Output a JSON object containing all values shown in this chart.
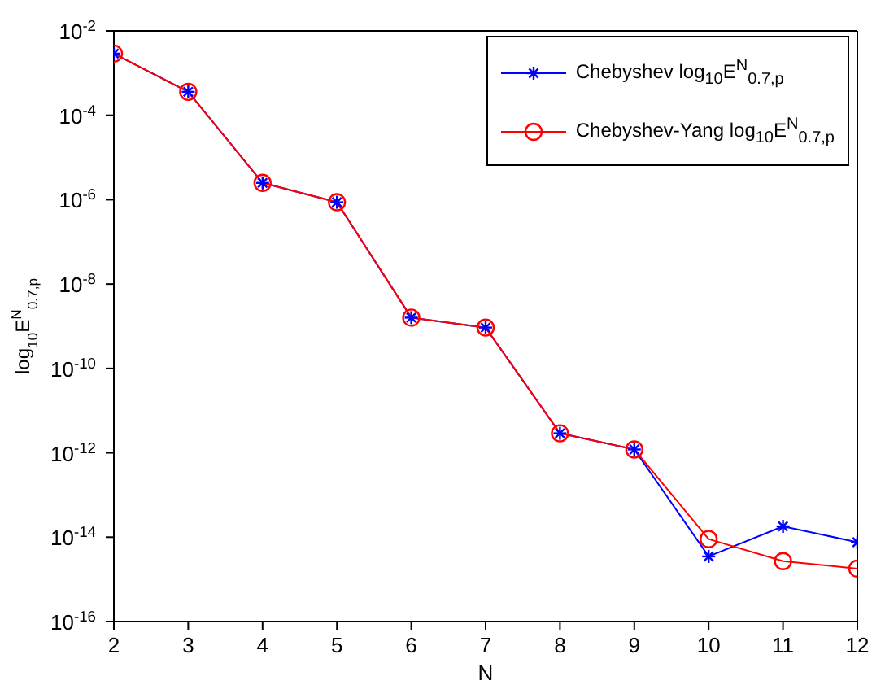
{
  "chart_data": {
    "type": "line",
    "xlabel": "N",
    "ylabel": "log$_{10}$E$^{N}$$_{0.7,p}$",
    "x": [
      2,
      3,
      4,
      5,
      6,
      7,
      8,
      9,
      10,
      11,
      12
    ],
    "series": [
      {
        "name": "Chebyshev log$_{10}$E$^{N}$$_{0.7,p}$",
        "color": "#0000ff",
        "marker": "cross",
        "values": [
          0.0029,
          0.00036,
          2.5e-06,
          8.7e-07,
          1.6e-09,
          9.3e-10,
          2.9e-12,
          1.2e-12,
          3.5e-15,
          1.8e-14,
          7.6e-15
        ]
      },
      {
        "name": "Chebyshev-Yang log$_{10}$E$^{N}$$_{0.7,p}$",
        "color": "#ff0000",
        "marker": "circle",
        "values": [
          0.0029,
          0.00036,
          2.5e-06,
          8.7e-07,
          1.6e-09,
          9.3e-10,
          2.9e-12,
          1.2e-12,
          9e-15,
          2.7e-15,
          1.8e-15
        ]
      }
    ],
    "log": "y",
    "xlim": [
      2,
      12
    ],
    "xticks": [
      2,
      3,
      4,
      5,
      6,
      7,
      8,
      9,
      10,
      11,
      12
    ],
    "ylim": [
      1e-16,
      0.01
    ],
    "yticks": [
      {
        "value": 1e-16,
        "label": "10$^{-16}$"
      },
      {
        "value": 1e-14,
        "label": "10$^{-14}$"
      },
      {
        "value": 1e-12,
        "label": "10$^{-12}$"
      },
      {
        "value": 1e-10,
        "label": "10$^{-10}$"
      },
      {
        "value": 1e-08,
        "label": "10$^{-8}$"
      },
      {
        "value": 1e-06,
        "label": "10$^{-6}$"
      },
      {
        "value": 0.0001,
        "label": "10$^{-4}$"
      },
      {
        "value": 0.01,
        "label": "10$^{-2}$"
      }
    ],
    "grid": false,
    "legend": "top right",
    "line_style": "solid"
  }
}
